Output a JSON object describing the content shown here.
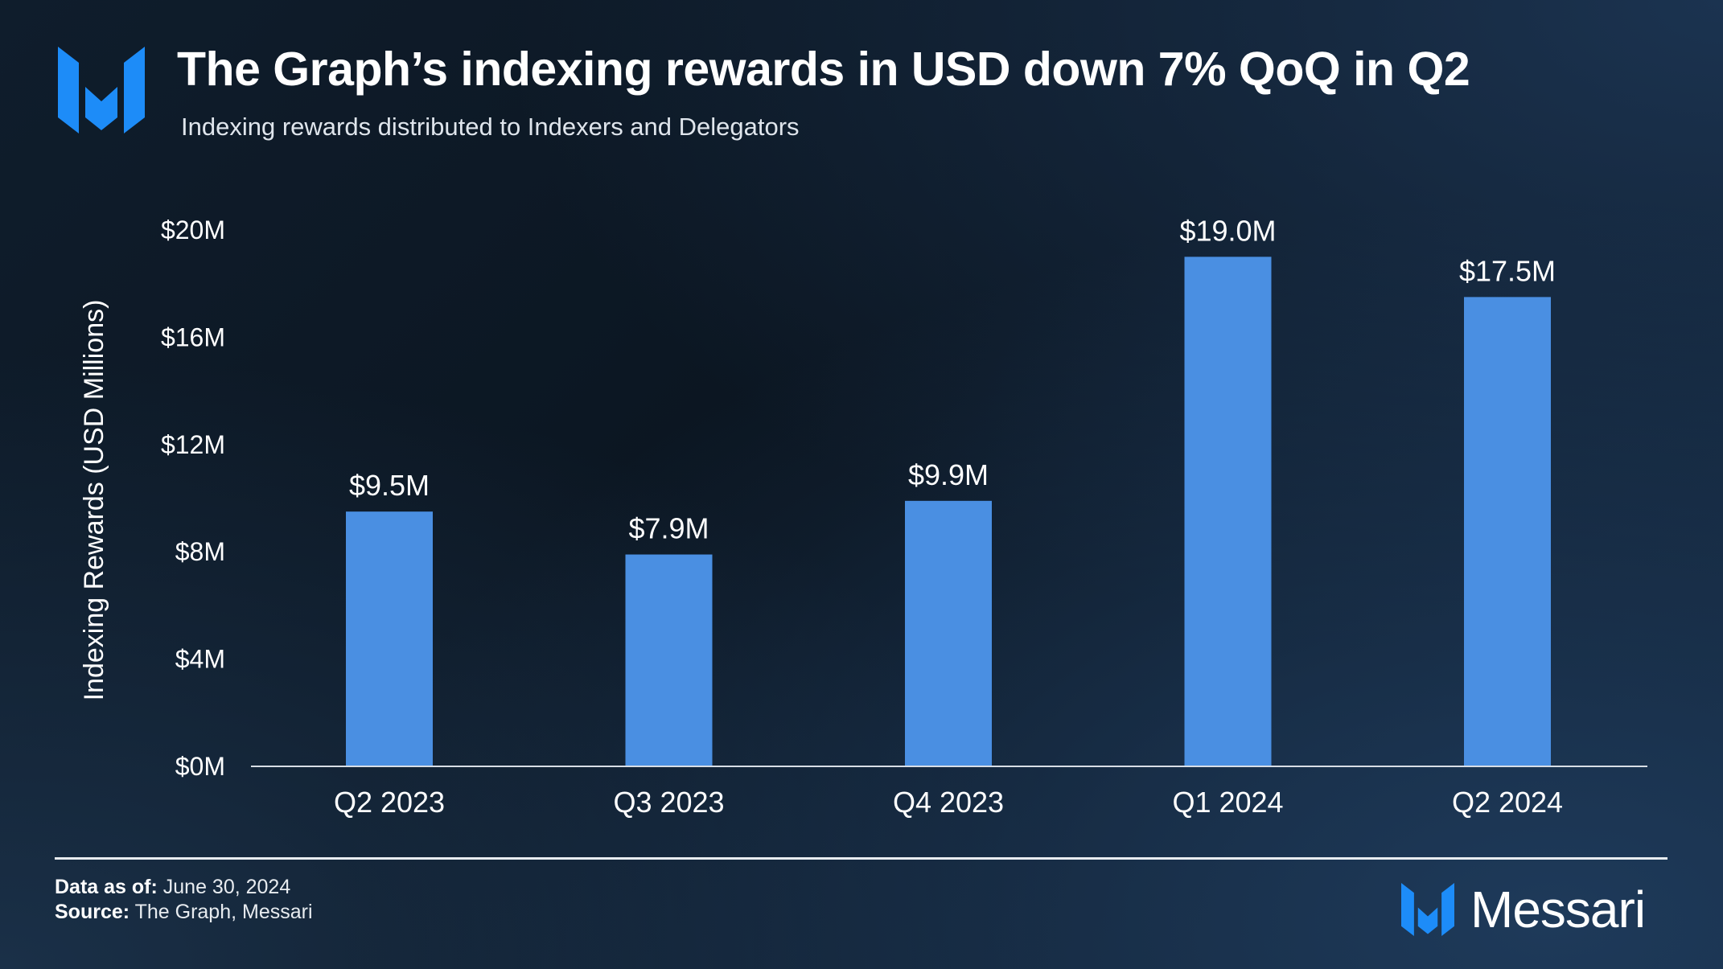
{
  "header": {
    "title": "The Graph’s indexing rewards in USD down 7% QoQ in Q2",
    "subtitle": "Indexing rewards distributed to Indexers and Delegators"
  },
  "chart_data": {
    "type": "bar",
    "title": "The Graph’s indexing rewards in USD down 7% QoQ in Q2",
    "subtitle": "Indexing rewards distributed to Indexers and Delegators",
    "xlabel": "",
    "ylabel": "Indexing Rewards (USD Millions)",
    "categories": [
      "Q2 2023",
      "Q3 2023",
      "Q4 2023",
      "Q1 2024",
      "Q2 2024"
    ],
    "values": [
      9.5,
      7.9,
      9.9,
      19.0,
      17.5
    ],
    "data_labels": [
      "$9.5M",
      "$7.9M",
      "$9.9M",
      "$19.0M",
      "$17.5M"
    ],
    "ylim": [
      0,
      20
    ],
    "yticks": [
      0,
      4,
      8,
      12,
      16,
      20
    ],
    "ytick_labels": [
      "$0M",
      "$4M",
      "$8M",
      "$12M",
      "$16M",
      "$20M"
    ],
    "grid": false,
    "bar_color": "#4a8fe2"
  },
  "footer": {
    "data_as_of_label": "Data as of:",
    "data_as_of_value": "June 30, 2024",
    "source_label": "Source:",
    "source_value": "The Graph, Messari",
    "brand": "Messari"
  },
  "colors": {
    "accent": "#2f8cf0",
    "bar": "#4a8fe2",
    "text": "#ffffff",
    "rule": "#e8ecf0"
  },
  "icons": {
    "logo": "messari-logo-icon",
    "brand": "messari-brand-icon"
  }
}
